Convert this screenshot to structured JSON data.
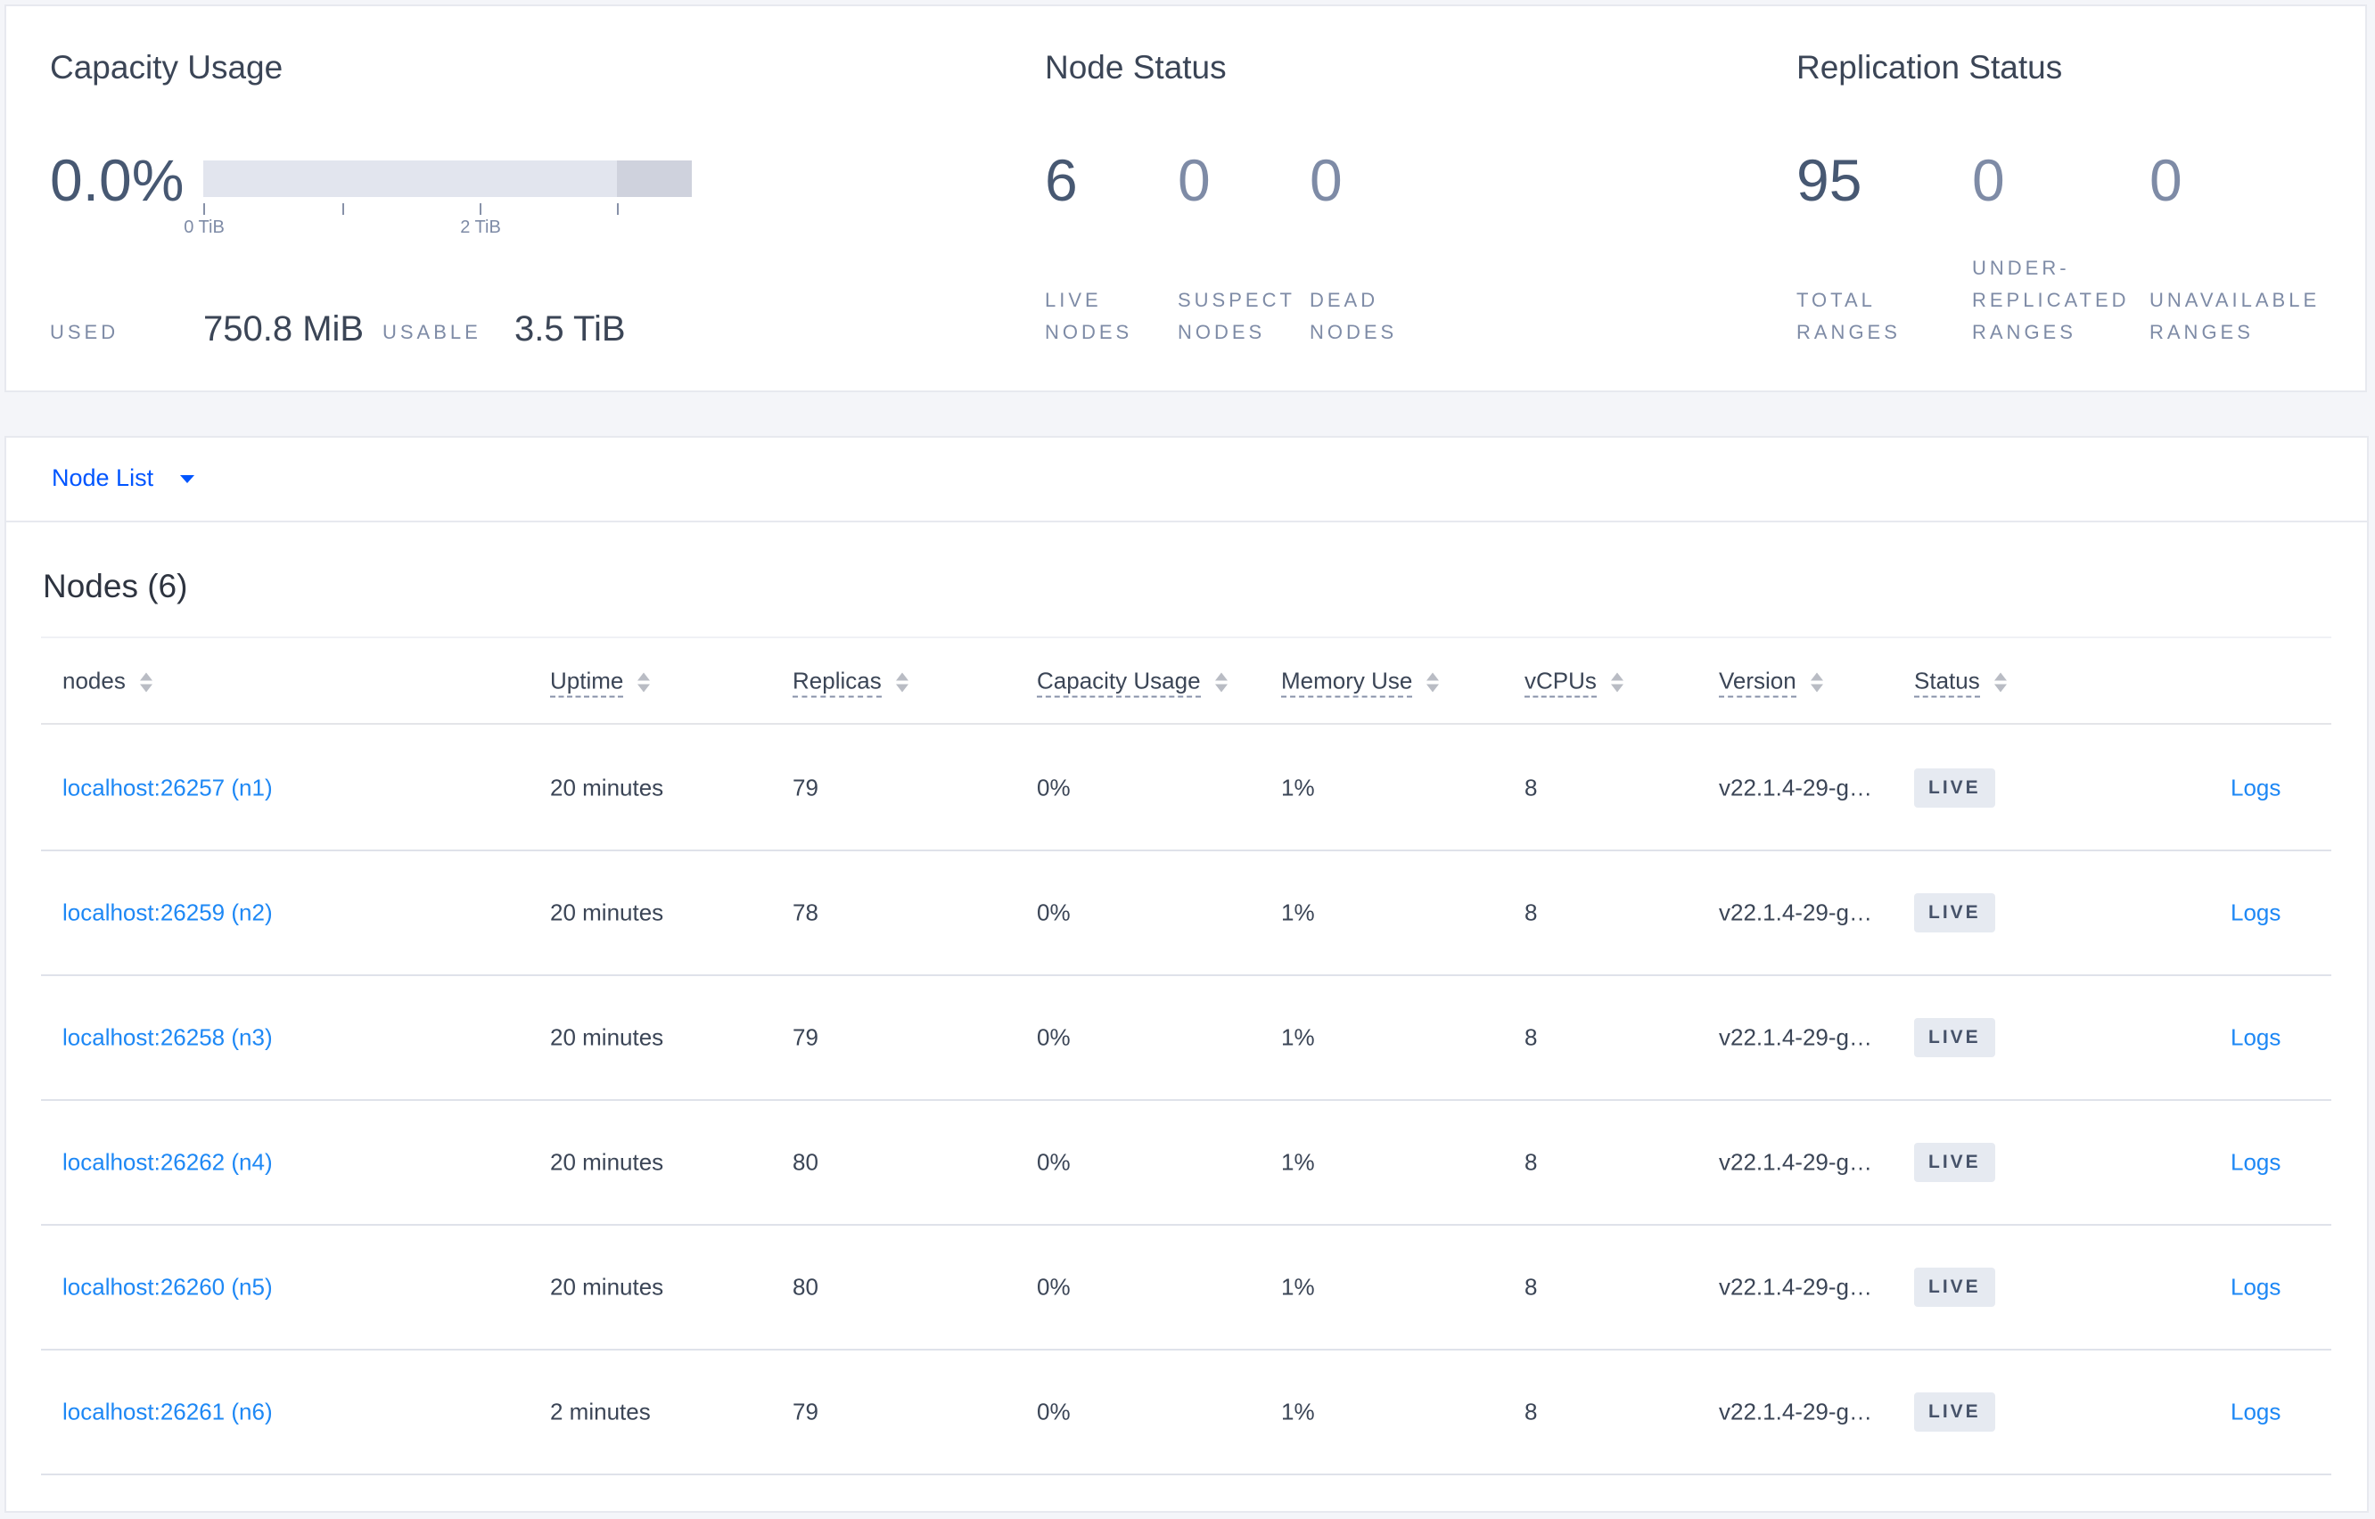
{
  "capacity": {
    "title": "Capacity Usage",
    "percent": "0.0%",
    "used_fraction": 0.0,
    "ticks": [
      "0 TiB",
      "2 TiB"
    ],
    "used_label": "USED",
    "used_value": "750.8 MiB",
    "usable_label": "USABLE",
    "usable_value": "3.5 TiB"
  },
  "node_status": {
    "title": "Node Status",
    "stats": [
      {
        "value": "6",
        "label1": "LIVE",
        "label2": "NODES"
      },
      {
        "value": "0",
        "label1": "SUSPECT",
        "label2": "NODES"
      },
      {
        "value": "0",
        "label1": "DEAD",
        "label2": "NODES"
      }
    ]
  },
  "replication": {
    "title": "Replication Status",
    "stats": [
      {
        "value": "95",
        "label1": "",
        "label2": "TOTAL",
        "label3": "RANGES"
      },
      {
        "value": "0",
        "label1": "UNDER-",
        "label2": "REPLICATED",
        "label3": "RANGES"
      },
      {
        "value": "0",
        "label1": "",
        "label2": "UNAVAILABLE",
        "label3": "RANGES"
      }
    ]
  },
  "node_list": {
    "dropdown": "Node List",
    "heading": "Nodes (6)",
    "columns": [
      "nodes",
      "Uptime",
      "Replicas",
      "Capacity Usage",
      "Memory Use",
      "vCPUs",
      "Version",
      "Status"
    ],
    "rows": [
      {
        "node": "localhost:26257 (n1)",
        "uptime": "20 minutes",
        "replicas": "79",
        "capacity": "0%",
        "memory": "1%",
        "vcpus": "8",
        "version": "v22.1.4-29-g…",
        "status": "LIVE",
        "logs": "Logs"
      },
      {
        "node": "localhost:26259 (n2)",
        "uptime": "20 minutes",
        "replicas": "78",
        "capacity": "0%",
        "memory": "1%",
        "vcpus": "8",
        "version": "v22.1.4-29-g…",
        "status": "LIVE",
        "logs": "Logs"
      },
      {
        "node": "localhost:26258 (n3)",
        "uptime": "20 minutes",
        "replicas": "79",
        "capacity": "0%",
        "memory": "1%",
        "vcpus": "8",
        "version": "v22.1.4-29-g…",
        "status": "LIVE",
        "logs": "Logs"
      },
      {
        "node": "localhost:26262 (n4)",
        "uptime": "20 minutes",
        "replicas": "80",
        "capacity": "0%",
        "memory": "1%",
        "vcpus": "8",
        "version": "v22.1.4-29-g…",
        "status": "LIVE",
        "logs": "Logs"
      },
      {
        "node": "localhost:26260 (n5)",
        "uptime": "20 minutes",
        "replicas": "80",
        "capacity": "0%",
        "memory": "1%",
        "vcpus": "8",
        "version": "v22.1.4-29-g…",
        "status": "LIVE",
        "logs": "Logs"
      },
      {
        "node": "localhost:26261 (n6)",
        "uptime": "2 minutes",
        "replicas": "79",
        "capacity": "0%",
        "memory": "1%",
        "vcpus": "8",
        "version": "v22.1.4-29-g…",
        "status": "LIVE",
        "logs": "Logs"
      }
    ]
  },
  "colors": {
    "link": "#1e88f5",
    "accent_dropdown": "#0055ff",
    "badge_bg": "#e6eaf1"
  }
}
